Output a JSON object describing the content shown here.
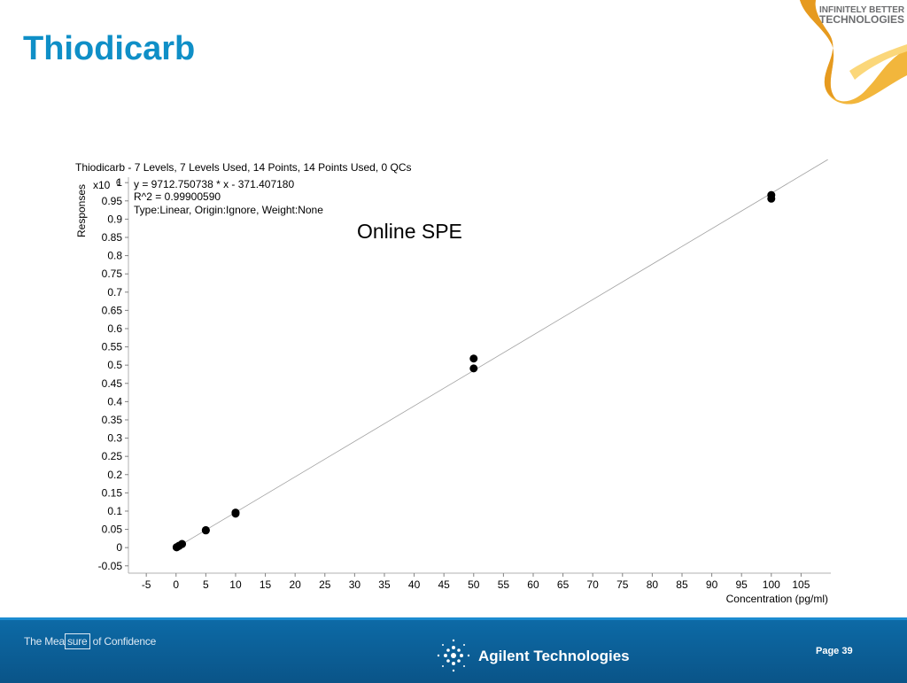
{
  "slide": {
    "title": "Thiodicarb",
    "logo_line1": "INFINITELY BETTER",
    "logo_line2": "TECHNOLOGIES",
    "footer_tagline_pre": "The Mea",
    "footer_tagline_box": "sure",
    "footer_tagline_post": " of Confidence",
    "footer_brand": "Agilent Technologies",
    "page_label": "Page 39"
  },
  "chart_data": {
    "type": "scatter",
    "title": "Thiodicarb - 7 Levels, 7 Levels Used, 14 Points, 14 Points Used, 0 QCs",
    "equation": "y = 9712.750738 * x  - 371.407180",
    "r_squared": "R^2 = 0.99900590",
    "fit_type": "Type:Linear, Origin:Ignore, Weight:None",
    "annotation": "Online SPE",
    "xlabel": "Concentration (pg/ml)",
    "ylabel": "Responses",
    "y_multiplier_base": "x10",
    "y_multiplier_exp": "6",
    "xlim": [
      -8,
      110
    ],
    "ylim": [
      -0.07,
      1.015
    ],
    "x_ticks": [
      -5,
      0,
      5,
      10,
      15,
      20,
      25,
      30,
      35,
      40,
      45,
      50,
      55,
      60,
      65,
      70,
      75,
      80,
      85,
      90,
      95,
      100,
      105
    ],
    "y_ticks": [
      -0.05,
      0,
      0.05,
      0.1,
      0.15,
      0.2,
      0.25,
      0.3,
      0.35,
      0.4,
      0.45,
      0.5,
      0.55,
      0.6,
      0.65,
      0.7,
      0.75,
      0.8,
      0.85,
      0.9,
      0.95,
      1
    ],
    "points": [
      {
        "x": 0.1,
        "y": 0.0008
      },
      {
        "x": 0.1,
        "y": 0.0012
      },
      {
        "x": 0.5,
        "y": 0.0045
      },
      {
        "x": 0.5,
        "y": 0.0052
      },
      {
        "x": 1,
        "y": 0.0095
      },
      {
        "x": 1,
        "y": 0.01
      },
      {
        "x": 5,
        "y": 0.047
      },
      {
        "x": 5,
        "y": 0.048
      },
      {
        "x": 10,
        "y": 0.093
      },
      {
        "x": 10,
        "y": 0.096
      },
      {
        "x": 50,
        "y": 0.491
      },
      {
        "x": 50,
        "y": 0.518
      },
      {
        "x": 100,
        "y": 0.956
      },
      {
        "x": 100,
        "y": 0.966
      }
    ],
    "fit_line": {
      "slope": 0.009712750738,
      "intercept": -0.00037140718
    },
    "grid": false,
    "marker_color": "#000000",
    "line_color": "#a0a0a0"
  }
}
